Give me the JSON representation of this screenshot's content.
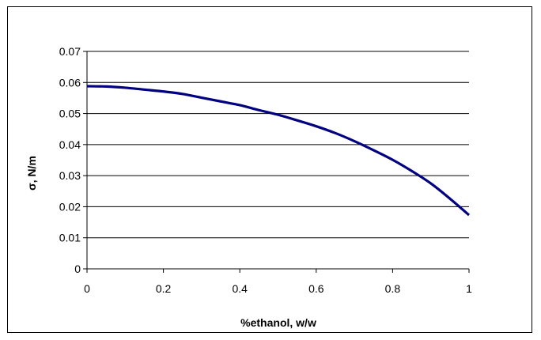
{
  "chart_data": {
    "type": "line",
    "title": "",
    "xlabel": "%ethanol, w/w",
    "ylabel": "σ, N/m",
    "xlim": [
      0,
      1
    ],
    "ylim": [
      0,
      0.07
    ],
    "x_ticks": [
      "0",
      "0.2",
      "0.4",
      "0.6",
      "0.8",
      "1"
    ],
    "y_ticks": [
      "0",
      "0.01",
      "0.02",
      "0.03",
      "0.04",
      "0.05",
      "0.06",
      "0.07"
    ],
    "grid": "horizontal",
    "legend": "none",
    "series": [
      {
        "color": "#000080",
        "x": [
          0,
          0.05,
          0.1,
          0.15,
          0.2,
          0.25,
          0.3,
          0.35,
          0.4,
          0.45,
          0.5,
          0.55,
          0.6,
          0.65,
          0.7,
          0.75,
          0.8,
          0.85,
          0.9,
          0.95,
          1
        ],
        "y": [
          0.0588,
          0.0587,
          0.0583,
          0.0577,
          0.0571,
          0.0563,
          0.0551,
          0.0539,
          0.0527,
          0.0511,
          0.0496,
          0.0478,
          0.0459,
          0.0437,
          0.0411,
          0.0382,
          0.0351,
          0.0315,
          0.0275,
          0.0226,
          0.0173
        ]
      }
    ]
  }
}
